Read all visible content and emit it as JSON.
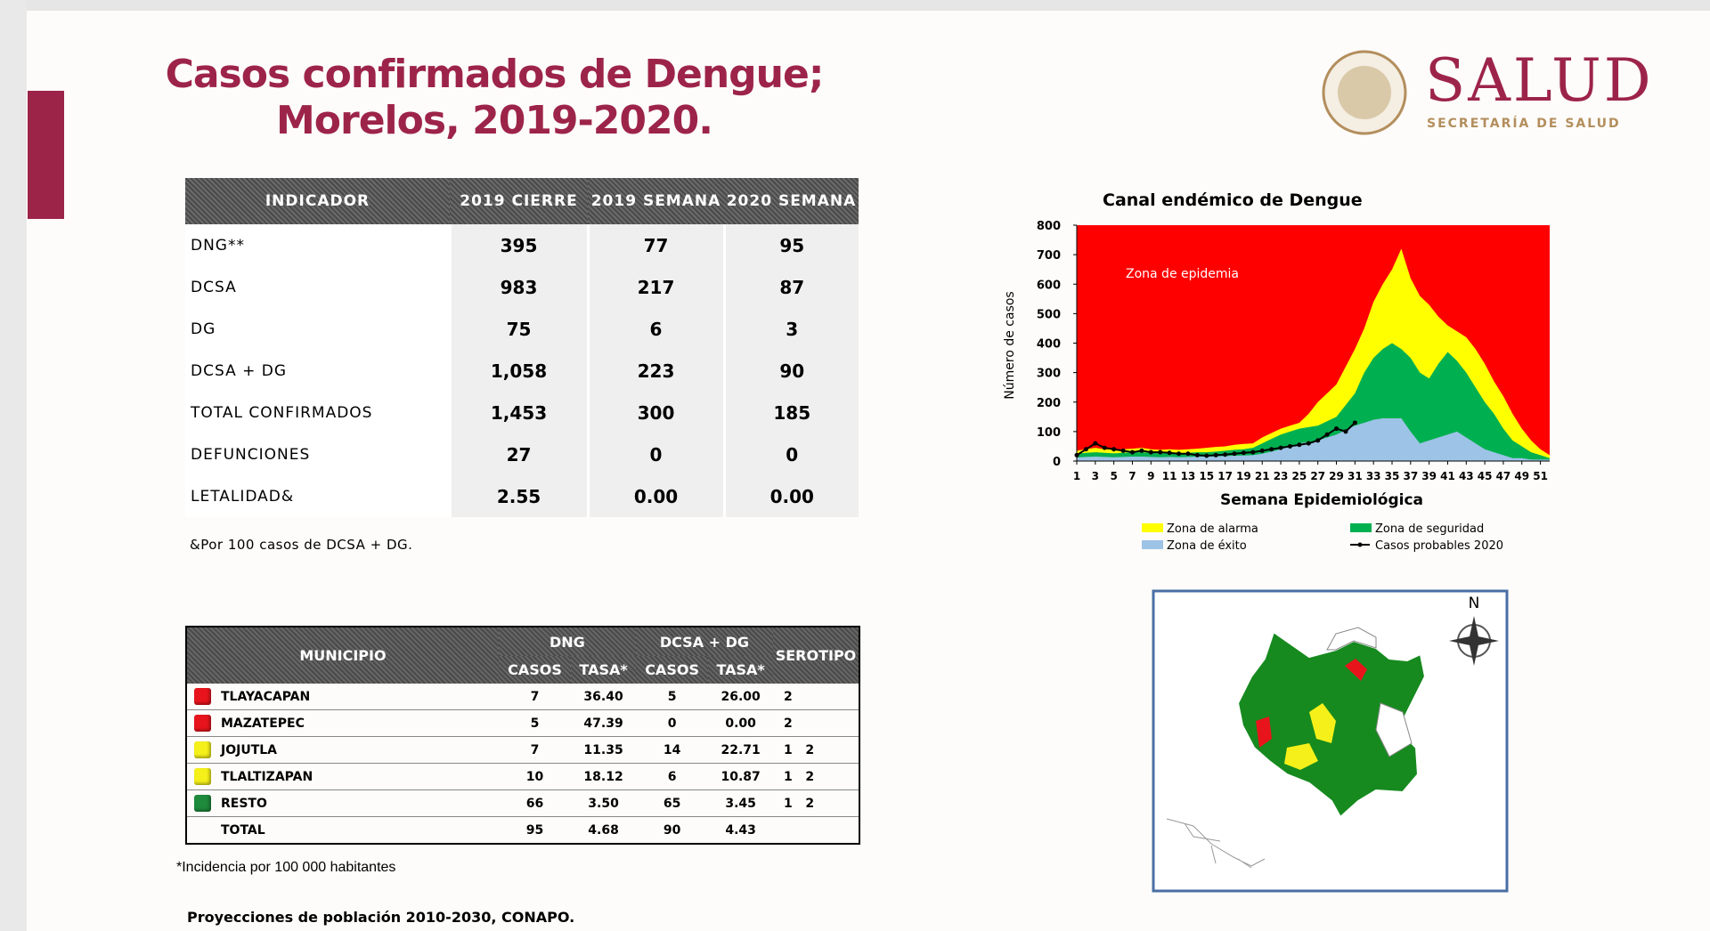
{
  "header": {
    "title_line1": "Casos confirmados de Dengue;",
    "title_line2": "Morelos, 2019-2020.",
    "logo_name": "SALUD",
    "logo_subtitle": "SECRETARÍA DE SALUD"
  },
  "table1": {
    "columns": [
      "INDICADOR",
      "2019 CIERRE",
      "2019 SEMANA",
      "2020 SEMANA"
    ],
    "rows": [
      [
        "DNG**",
        "395",
        "77",
        "95"
      ],
      [
        "DCSA",
        "983",
        "217",
        "87"
      ],
      [
        "DG",
        "75",
        "6",
        "3"
      ],
      [
        "DCSA + DG",
        "1,058",
        "223",
        "90"
      ],
      [
        "TOTAL CONFIRMADOS",
        "1,453",
        "300",
        "185"
      ],
      [
        "DEFUNCIONES",
        "27",
        "0",
        "0"
      ],
      [
        "LETALIDAD&",
        "2.55",
        "0.00",
        "0.00"
      ]
    ],
    "footnote": "&Por 100 casos de DCSA + DG."
  },
  "table2": {
    "col_municipio": "MUNICIPIO",
    "group_dng": "DNG",
    "group_dcsa": "DCSA + DG",
    "col_serotipo": "SEROTIPO",
    "subcolumns": [
      "CASOS",
      "TASA*",
      "CASOS",
      "TASA*"
    ],
    "rows": [
      {
        "color": "#e8141c",
        "cells": [
          "TLAYACAPAN",
          "7",
          "36.40",
          "5",
          "26.00",
          "2"
        ]
      },
      {
        "color": "#e8141c",
        "cells": [
          "MAZATEPEC",
          "5",
          "47.39",
          "0",
          "0.00",
          "2"
        ]
      },
      {
        "color": "#f5f01a",
        "cells": [
          "JOJUTLA",
          "7",
          "11.35",
          "14",
          "22.71",
          "1   2"
        ]
      },
      {
        "color": "#f5f01a",
        "cells": [
          "TLALTIZAPAN",
          "10",
          "18.12",
          "6",
          "10.87",
          "1   2"
        ]
      },
      {
        "color": "#1e8a3c",
        "cells": [
          "RESTO",
          "66",
          "3.50",
          "65",
          "3.45",
          "1   2"
        ]
      },
      {
        "cells": [
          "TOTAL",
          "95",
          "4.68",
          "90",
          "4.43"
        ]
      }
    ],
    "note": "*Incidencia por 100 000 habitantes"
  },
  "source": "Proyecciones de población 2010-2030,  CONAPO.",
  "map": {
    "north": "N"
  },
  "chart": {
    "type": "area",
    "title": "Canal endémico de Dengue",
    "ylabel": "Número de casos",
    "xlabel": "Semana Epidemiológica",
    "annotation": "Zona de epidemia",
    "background_color": "#ff0000",
    "x": [
      1,
      2,
      3,
      4,
      5,
      6,
      7,
      8,
      9,
      10,
      11,
      12,
      13,
      14,
      15,
      16,
      17,
      18,
      19,
      20,
      21,
      22,
      23,
      24,
      25,
      26,
      27,
      28,
      29,
      30,
      31,
      32,
      33,
      34,
      35,
      36,
      37,
      38,
      39,
      40,
      41,
      42,
      43,
      44,
      45,
      46,
      47,
      48,
      49,
      50,
      51,
      52
    ],
    "xlim": [
      1,
      52
    ],
    "xticks": [
      1,
      3,
      5,
      7,
      9,
      11,
      13,
      15,
      17,
      19,
      21,
      23,
      25,
      27,
      29,
      31,
      33,
      35,
      37,
      39,
      41,
      43,
      45,
      47,
      49,
      51
    ],
    "ylim": [
      0,
      800
    ],
    "yticks": [
      0,
      100,
      200,
      300,
      400,
      500,
      600,
      700,
      800
    ],
    "series": [
      {
        "name": "Zona de alarma",
        "color": "#ffff00",
        "values": [
          35,
          40,
          45,
          40,
          38,
          40,
          42,
          45,
          40,
          38,
          40,
          38,
          40,
          42,
          45,
          48,
          50,
          55,
          58,
          60,
          80,
          95,
          110,
          120,
          130,
          160,
          200,
          230,
          260,
          320,
          380,
          450,
          540,
          600,
          650,
          720,
          620,
          560,
          530,
          490,
          460,
          440,
          420,
          380,
          330,
          270,
          220,
          160,
          110,
          70,
          40,
          20
        ]
      },
      {
        "name": "Zona de seguridad",
        "color": "#00b050",
        "values": [
          25,
          28,
          30,
          28,
          26,
          28,
          30,
          30,
          28,
          26,
          28,
          26,
          28,
          30,
          30,
          32,
          35,
          38,
          40,
          45,
          60,
          75,
          90,
          100,
          110,
          115,
          120,
          135,
          150,
          190,
          230,
          300,
          350,
          380,
          400,
          380,
          350,
          300,
          280,
          330,
          370,
          340,
          300,
          250,
          200,
          160,
          110,
          70,
          50,
          30,
          20,
          10
        ]
      },
      {
        "name": "Zona de éxito",
        "color": "#9dc3e6",
        "values": [
          12,
          14,
          15,
          14,
          13,
          14,
          15,
          15,
          14,
          13,
          14,
          13,
          14,
          15,
          15,
          16,
          17,
          18,
          19,
          20,
          25,
          32,
          40,
          50,
          60,
          65,
          70,
          80,
          90,
          105,
          120,
          130,
          140,
          145,
          145,
          145,
          100,
          60,
          70,
          80,
          90,
          100,
          80,
          60,
          40,
          30,
          20,
          10,
          10,
          5,
          5,
          5
        ]
      },
      {
        "name": "Casos probables 2020",
        "color": "#000000",
        "type": "line",
        "values": [
          20,
          40,
          60,
          45,
          40,
          35,
          30,
          35,
          30,
          30,
          28,
          25,
          25,
          20,
          18,
          20,
          22,
          25,
          28,
          30,
          35,
          40,
          45,
          50,
          55,
          60,
          70,
          90,
          110,
          100,
          130,
          null,
          null,
          null,
          null,
          null,
          null,
          null,
          null,
          null,
          null,
          null,
          null,
          null,
          null,
          null,
          null,
          null,
          null,
          null,
          null,
          null
        ]
      }
    ]
  }
}
